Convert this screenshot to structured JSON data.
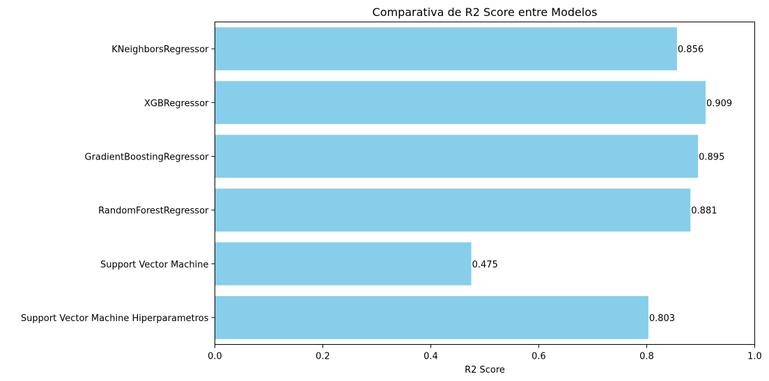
{
  "chart_data": {
    "type": "bar",
    "orientation": "horizontal",
    "title": "Comparativa de R2 Score entre Modelos",
    "xlabel": "R2 Score",
    "ylabel": "",
    "xlim": [
      0,
      1.0
    ],
    "xticks": [
      "0.0",
      "0.2",
      "0.4",
      "0.6",
      "0.8",
      "1.0"
    ],
    "grid": false,
    "bar_color": "#87ceeb",
    "categories": [
      "KNeighborsRegressor",
      "XGBRegressor",
      "GradientBoostingRegressor",
      "RandomForestRegressor",
      "Support Vector Machine",
      "Support Vector Machine Hiperparametros"
    ],
    "values": [
      0.856,
      0.909,
      0.895,
      0.881,
      0.475,
      0.803
    ],
    "value_labels": [
      "0.856",
      "0.909",
      "0.895",
      "0.881",
      "0.475",
      "0.803"
    ]
  }
}
